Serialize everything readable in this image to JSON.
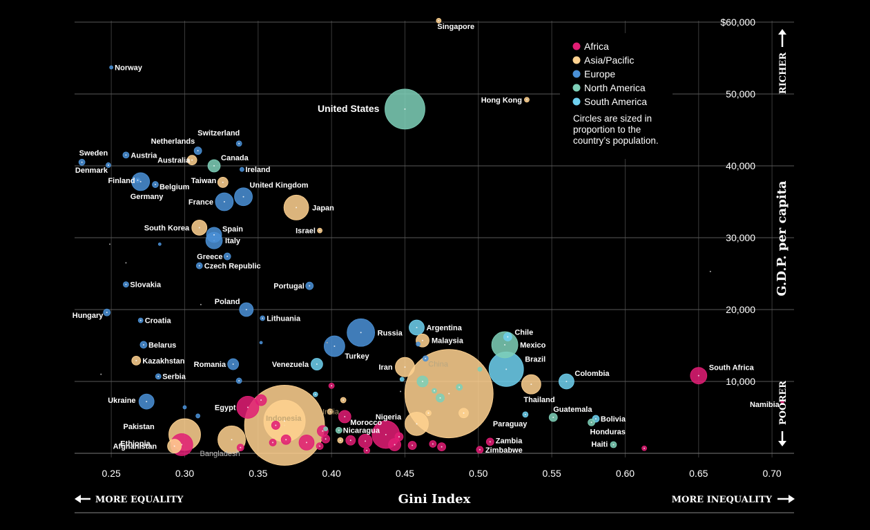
{
  "chart_data": {
    "type": "scatter",
    "title": "",
    "xlabel": "Gini Index",
    "ylabel": "G.D.P. per capita",
    "xlim": [
      0.225,
      0.715
    ],
    "ylim": [
      0,
      60000
    ],
    "x_ticks": [
      "0.25",
      "0.30",
      "0.35",
      "0.40",
      "0.45",
      "0.50",
      "0.55",
      "0.60",
      "0.65",
      "0.70"
    ],
    "y_ticks": [
      "$60,000",
      "50,000",
      "40,000",
      "30,000",
      "20,000",
      "10,000"
    ],
    "grid": true,
    "legend_position": "top-right",
    "legend": [
      {
        "name": "Africa",
        "color": "#e11d74"
      },
      {
        "name": "Asia/Pacific",
        "color": "#ffd290"
      },
      {
        "name": "Europe",
        "color": "#4a90d6"
      },
      {
        "name": "North America",
        "color": "#7ecfb8"
      },
      {
        "name": "South America",
        "color": "#6fd0ef"
      }
    ],
    "legend_note": "Circles are sized in proportion to the country’s population.",
    "annotations": {
      "left_arrow": "MORE EQUALITY",
      "right_arrow": "MORE INEQUALITY",
      "top_arrow": "RICHER",
      "bottom_arrow": "POORER"
    },
    "points": [
      {
        "label": "Singapore",
        "region": "Asia/Pacific",
        "x": 0.473,
        "y": 60200,
        "r": 3.5
      },
      {
        "label": "Norway",
        "region": "Europe",
        "x": 0.25,
        "y": 53700,
        "r": 2.5
      },
      {
        "label": "United States",
        "region": "North America",
        "x": 0.45,
        "y": 47900,
        "r": 29
      },
      {
        "label": "Hong Kong",
        "region": "Asia/Pacific",
        "x": 0.533,
        "y": 49200,
        "r": 3.5
      },
      {
        "label": "Switzerland",
        "region": "Europe",
        "x": 0.337,
        "y": 43100,
        "r": 4
      },
      {
        "label": "Netherlands",
        "region": "Europe",
        "x": 0.309,
        "y": 42100,
        "r": 5.5
      },
      {
        "label": "Sweden",
        "region": "Europe",
        "x": 0.23,
        "y": 40500,
        "r": 4.5
      },
      {
        "label": "Austria",
        "region": "Europe",
        "x": 0.26,
        "y": 41500,
        "r": 4.5
      },
      {
        "label": "Denmark",
        "region": "Europe",
        "x": 0.248,
        "y": 40100,
        "r": 3.5
      },
      {
        "label": "Australia",
        "region": "Asia/Pacific",
        "x": 0.305,
        "y": 40800,
        "r": 7
      },
      {
        "label": "Canada",
        "region": "North America",
        "x": 0.32,
        "y": 40000,
        "r": 9
      },
      {
        "label": "Ireland",
        "region": "Europe",
        "x": 0.339,
        "y": 39500,
        "r": 3
      },
      {
        "label": "Finland",
        "region": "Europe",
        "x": 0.268,
        "y": 38000,
        "r": 3.5
      },
      {
        "label": "Germany",
        "region": "Europe",
        "x": 0.27,
        "y": 37800,
        "r": 13
      },
      {
        "label": "Belgium",
        "region": "Europe",
        "x": 0.28,
        "y": 37400,
        "r": 4.5
      },
      {
        "label": "Taiwan",
        "region": "Asia/Pacific",
        "x": 0.326,
        "y": 37700,
        "r": 7.5
      },
      {
        "label": "United Kingdom",
        "region": "Europe",
        "x": 0.34,
        "y": 35700,
        "r": 13
      },
      {
        "label": "France",
        "region": "Europe",
        "x": 0.327,
        "y": 35000,
        "r": 13
      },
      {
        "label": "Japan",
        "region": "Asia/Pacific",
        "x": 0.376,
        "y": 34200,
        "r": 18
      },
      {
        "label": "South Korea",
        "region": "Asia/Pacific",
        "x": 0.31,
        "y": 31400,
        "r": 11
      },
      {
        "label": "Israel",
        "region": "Asia/Pacific",
        "x": 0.392,
        "y": 31000,
        "r": 3.5
      },
      {
        "label": "Spain",
        "region": "Europe",
        "x": 0.32,
        "y": 30400,
        "r": 11
      },
      {
        "label": "Italy",
        "region": "Europe",
        "x": 0.32,
        "y": 29600,
        "r": 12
      },
      {
        "label": "Greece",
        "region": "Europe",
        "x": 0.329,
        "y": 27400,
        "r": 5
      },
      {
        "label": "Czech Republic",
        "region": "Europe",
        "x": 0.31,
        "y": 26100,
        "r": 4.5
      },
      {
        "label": "Slovakia",
        "region": "Europe",
        "x": 0.26,
        "y": 23500,
        "r": 4
      },
      {
        "label": "Portugal",
        "region": "Europe",
        "x": 0.385,
        "y": 23300,
        "r": 5.5
      },
      {
        "label": "Poland",
        "region": "Europe",
        "x": 0.342,
        "y": 20000,
        "r": 10
      },
      {
        "label": "Hungary",
        "region": "Europe",
        "x": 0.247,
        "y": 19600,
        "r": 5
      },
      {
        "label": "Croatia",
        "region": "Europe",
        "x": 0.27,
        "y": 18500,
        "r": 3.5
      },
      {
        "label": "Lithuania",
        "region": "Europe",
        "x": 0.353,
        "y": 18800,
        "r": 3.5
      },
      {
        "label": "Argentina",
        "region": "South America",
        "x": 0.458,
        "y": 17500,
        "r": 11
      },
      {
        "label": "Russia",
        "region": "Europe",
        "x": 0.42,
        "y": 16800,
        "r": 20
      },
      {
        "label": "Malaysia",
        "region": "Asia/Pacific",
        "x": 0.462,
        "y": 15700,
        "r": 9.5
      },
      {
        "label": "Chile",
        "region": "South America",
        "x": 0.52,
        "y": 16200,
        "r": 6
      },
      {
        "label": "Belarus",
        "region": "Europe",
        "x": 0.272,
        "y": 15100,
        "r": 5
      },
      {
        "label": "Mexico",
        "region": "North America",
        "x": 0.518,
        "y": 15100,
        "r": 19
      },
      {
        "label": "Turkey",
        "region": "Europe",
        "x": 0.402,
        "y": 14900,
        "r": 15
      },
      {
        "label": "Kazakhstan",
        "region": "Asia/Pacific",
        "x": 0.267,
        "y": 12900,
        "r": 6.5
      },
      {
        "label": "Brazil",
        "region": "South America",
        "x": 0.519,
        "y": 11700,
        "r": 25
      },
      {
        "label": "Romania",
        "region": "Europe",
        "x": 0.333,
        "y": 12400,
        "r": 8
      },
      {
        "label": "Venezuela",
        "region": "South America",
        "x": 0.39,
        "y": 12400,
        "r": 8.5
      },
      {
        "label": "Iran",
        "region": "Asia/Pacific",
        "x": 0.45,
        "y": 12000,
        "r": 14
      },
      {
        "label": "South Africa",
        "region": "Africa",
        "x": 0.65,
        "y": 10800,
        "r": 12
      },
      {
        "label": "Serbia",
        "region": "Europe",
        "x": 0.282,
        "y": 10700,
        "r": 4
      },
      {
        "label": "Colombia",
        "region": "South America",
        "x": 0.56,
        "y": 10000,
        "r": 11
      },
      {
        "label": "Thailand",
        "region": "Asia/Pacific",
        "x": 0.536,
        "y": 9600,
        "r": 14
      },
      {
        "label": "China",
        "region": "Asia/Pacific",
        "x": 0.48,
        "y": 8300,
        "r": 64
      },
      {
        "label": "Ukraine",
        "region": "Europe",
        "x": 0.274,
        "y": 7200,
        "r": 11
      },
      {
        "label": "Namibia",
        "region": "Africa",
        "x": 0.707,
        "y": 7200,
        "r": 2.5
      },
      {
        "label": "Egypt",
        "region": "Africa",
        "x": 0.343,
        "y": 6400,
        "r": 16
      },
      {
        "label": "India",
        "region": "Asia/Pacific",
        "x": 0.368,
        "y": 3900,
        "r": 58
      },
      {
        "label": "Indonesia",
        "region": "Asia/Pacific",
        "x": 0.368,
        "y": 4500,
        "r": 30
      },
      {
        "label": "Morocco",
        "region": "Africa",
        "x": 0.409,
        "y": 5100,
        "r": 9
      },
      {
        "label": "Guatemala",
        "region": "North America",
        "x": 0.551,
        "y": 5000,
        "r": 6
      },
      {
        "label": "Bolivia",
        "region": "South America",
        "x": 0.58,
        "y": 4800,
        "r": 5
      },
      {
        "label": "Paraguay",
        "region": "South America",
        "x": 0.532,
        "y": 5400,
        "r": 4
      },
      {
        "label": "Pakistan",
        "region": "Asia/Pacific",
        "x": 0.3,
        "y": 2600,
        "r": 23
      },
      {
        "label": "Nigeria",
        "region": "Africa",
        "x": 0.437,
        "y": 2600,
        "r": 20
      },
      {
        "label": "Nicaragua",
        "region": "North America",
        "x": 0.405,
        "y": 3200,
        "r": 4.5
      },
      {
        "label": "Honduras",
        "region": "North America",
        "x": 0.577,
        "y": 4300,
        "r": 5
      },
      {
        "label": "Ethiopia",
        "region": "Africa",
        "x": 0.298,
        "y": 1200,
        "r": 16
      },
      {
        "label": "Afghanistan",
        "region": "Asia/Pacific",
        "x": 0.293,
        "y": 1000,
        "r": 10
      },
      {
        "label": "Bangladesh",
        "region": "Asia/Pacific",
        "x": 0.332,
        "y": 1900,
        "r": 20
      },
      {
        "label": "Zambia",
        "region": "Africa",
        "x": 0.508,
        "y": 1600,
        "r": 5.5
      },
      {
        "label": "Haiti",
        "region": "North America",
        "x": 0.592,
        "y": 1200,
        "r": 4.5
      },
      {
        "label": "Zimbabwe",
        "region": "Africa",
        "x": 0.501,
        "y": 500,
        "r": 5
      }
    ],
    "unlabeled": [
      {
        "region": "Africa",
        "x": 0.613,
        "y": 700,
        "r": 3.5
      },
      {
        "region": "Africa",
        "x": 0.4,
        "y": 9400,
        "r": 4
      },
      {
        "region": "Africa",
        "x": 0.352,
        "y": 7400,
        "r": 8
      },
      {
        "region": "Africa",
        "x": 0.423,
        "y": 1700,
        "r": 10
      },
      {
        "region": "Africa",
        "x": 0.443,
        "y": 1200,
        "r": 9
      },
      {
        "region": "Africa",
        "x": 0.446,
        "y": 2300,
        "r": 6
      },
      {
        "region": "Africa",
        "x": 0.413,
        "y": 1800,
        "r": 7
      },
      {
        "region": "Africa",
        "x": 0.396,
        "y": 2000,
        "r": 6
      },
      {
        "region": "Africa",
        "x": 0.392,
        "y": 1000,
        "r": 5
      },
      {
        "region": "Africa",
        "x": 0.383,
        "y": 1500,
        "r": 11
      },
      {
        "region": "Africa",
        "x": 0.36,
        "y": 1500,
        "r": 5
      },
      {
        "region": "Africa",
        "x": 0.338,
        "y": 800,
        "r": 5
      },
      {
        "region": "Africa",
        "x": 0.369,
        "y": 1900,
        "r": 7
      },
      {
        "region": "Africa",
        "x": 0.424,
        "y": 400,
        "r": 4.5
      },
      {
        "region": "Africa",
        "x": 0.455,
        "y": 1100,
        "r": 6
      },
      {
        "region": "Africa",
        "x": 0.469,
        "y": 1300,
        "r": 5
      },
      {
        "region": "Africa",
        "x": 0.475,
        "y": 900,
        "r": 6
      },
      {
        "region": "Africa",
        "x": 0.394,
        "y": 3100,
        "r": 8
      },
      {
        "region": "Africa",
        "x": 0.362,
        "y": 3900,
        "r": 6
      },
      {
        "region": "Asia/Pacific",
        "x": 0.466,
        "y": 5600,
        "r": 4
      },
      {
        "region": "Asia/Pacific",
        "x": 0.49,
        "y": 5600,
        "r": 7
      },
      {
        "region": "Asia/Pacific",
        "x": 0.408,
        "y": 7400,
        "r": 4
      },
      {
        "region": "Asia/Pacific",
        "x": 0.458,
        "y": 4100,
        "r": 17
      },
      {
        "region": "Asia/Pacific",
        "x": 0.399,
        "y": 5800,
        "r": 4
      },
      {
        "region": "Asia/Pacific",
        "x": 0.406,
        "y": 1800,
        "r": 4
      },
      {
        "region": "Europe",
        "x": 0.464,
        "y": 13200,
        "r": 4
      },
      {
        "region": "Europe",
        "x": 0.459,
        "y": 15200,
        "r": 3
      },
      {
        "region": "Europe",
        "x": 0.337,
        "y": 10100,
        "r": 4
      },
      {
        "region": "Europe",
        "x": 0.309,
        "y": 5200,
        "r": 3
      },
      {
        "region": "Europe",
        "x": 0.3,
        "y": 6400,
        "r": 2.5
      },
      {
        "region": "Europe",
        "x": 0.283,
        "y": 29100,
        "r": 2
      },
      {
        "region": "Europe",
        "x": 0.352,
        "y": 15400,
        "r": 2
      },
      {
        "region": "North America",
        "x": 0.462,
        "y": 10000,
        "r": 8
      },
      {
        "region": "North America",
        "x": 0.474,
        "y": 7700,
        "r": 6
      },
      {
        "region": "North America",
        "x": 0.487,
        "y": 9200,
        "r": 4.5
      },
      {
        "region": "North America",
        "x": 0.47,
        "y": 8700,
        "r": 3.5
      },
      {
        "region": "North America",
        "x": 0.501,
        "y": 11700,
        "r": 3
      },
      {
        "region": "North America",
        "x": 0.396,
        "y": 3400,
        "r": 3
      },
      {
        "region": "South America",
        "x": 0.389,
        "y": 8200,
        "r": 3.5
      },
      {
        "region": "South America",
        "x": 0.448,
        "y": 10300,
        "r": 3
      }
    ]
  }
}
